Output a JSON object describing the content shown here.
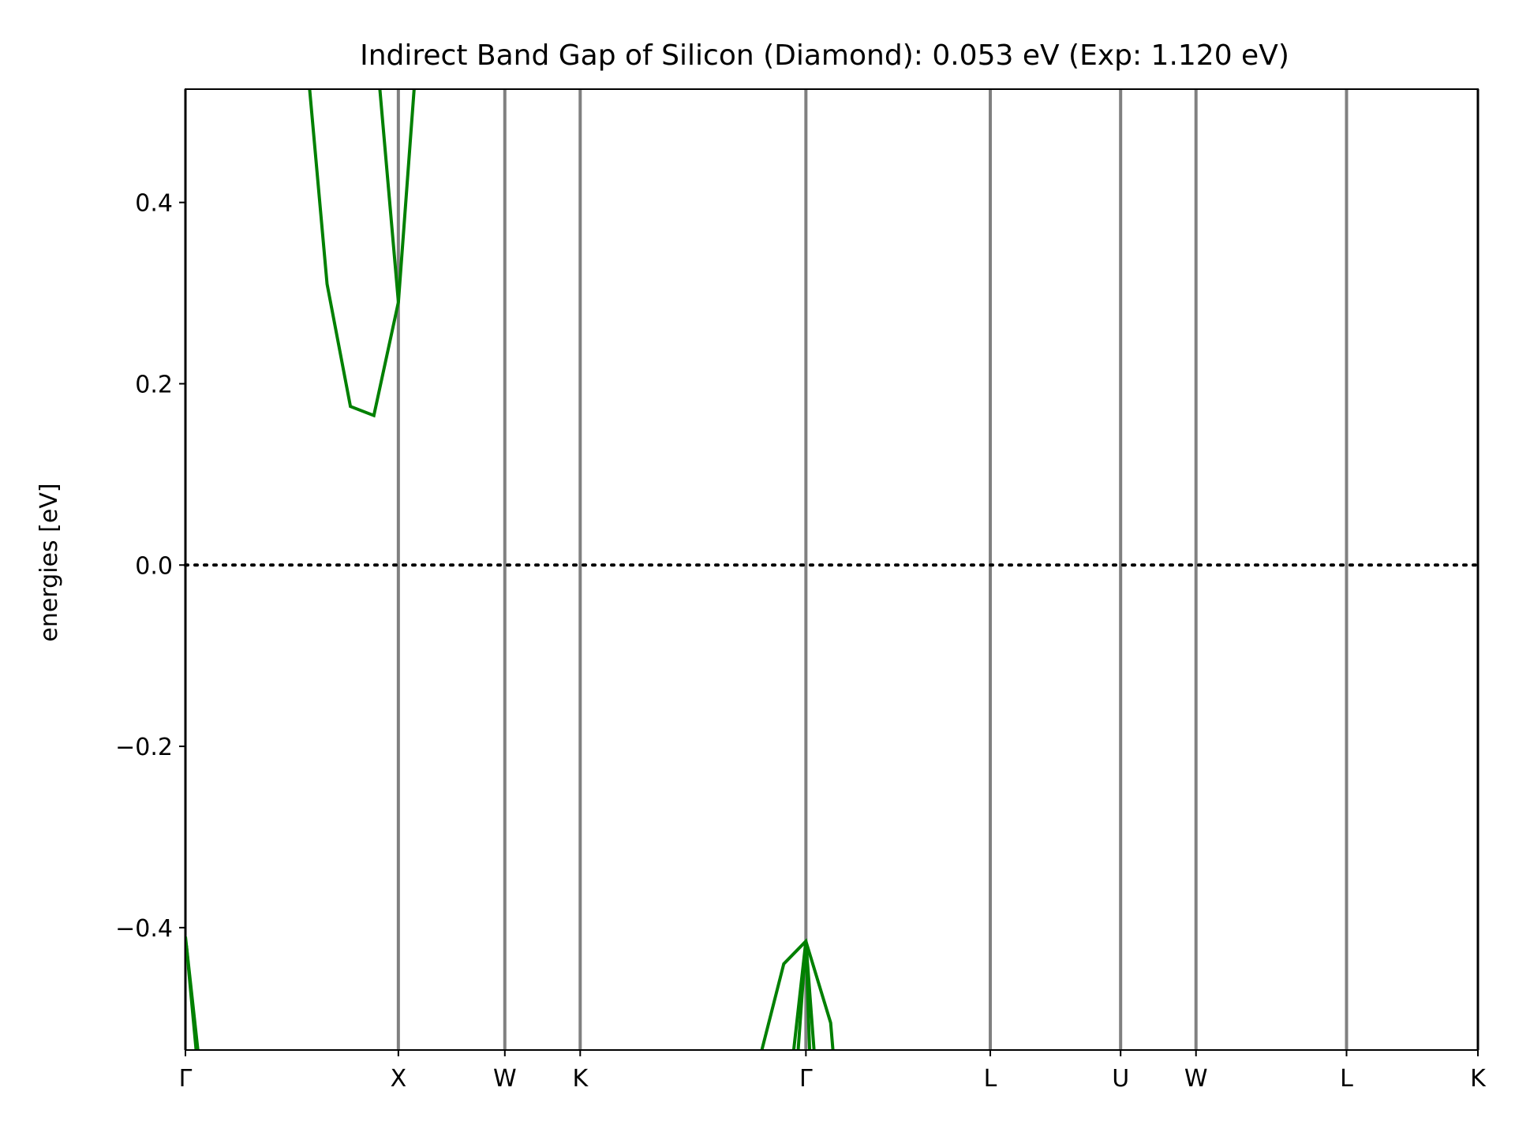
{
  "chart_data": {
    "type": "line",
    "title": "Indirect Band Gap of Silicon (Diamond): 0.053 eV (Exp: 1.120 eV)",
    "xlabel": "",
    "ylabel": "energies [eV]",
    "xlim": [
      0,
      6.07
    ],
    "ylim": [
      -0.535,
      0.525
    ],
    "yticks": [
      0.4,
      0.2,
      0.0,
      -0.2,
      -0.4
    ],
    "ytick_labels": [
      "0.4",
      "0.2",
      "0.0",
      "−0.2",
      "−0.4"
    ],
    "kpoints": [
      {
        "label": "Γ",
        "x": 0.0
      },
      {
        "label": "X",
        "x": 1.0
      },
      {
        "label": "W",
        "x": 1.5
      },
      {
        "label": "K",
        "x": 1.854
      },
      {
        "label": "Γ",
        "x": 2.914
      },
      {
        "label": "L",
        "x": 3.78
      },
      {
        "label": "U",
        "x": 4.392
      },
      {
        "label": "W",
        "x": 4.746
      },
      {
        "label": "L",
        "x": 5.453
      },
      {
        "label": "K",
        "x": 6.07
      }
    ],
    "fermi_level": 0.0,
    "grid": false,
    "colors": {
      "band": "#008000",
      "kline": "#808080",
      "fermi": "#000000"
    },
    "series": [
      {
        "points": [
          [
            0.0,
            -0.41
          ],
          [
            0.07,
            -0.56
          ]
        ]
      },
      {
        "points": [
          [
            0.005,
            -0.42
          ],
          [
            0.06,
            -0.56
          ]
        ]
      },
      {
        "points": [
          [
            0.57,
            0.56
          ],
          [
            0.665,
            0.31
          ],
          [
            0.775,
            0.175
          ],
          [
            0.885,
            0.165
          ],
          [
            1.0,
            0.29
          ],
          [
            1.085,
            0.56
          ]
        ]
      },
      {
        "points": [
          [
            0.9,
            0.56
          ],
          [
            1.0,
            0.29
          ]
        ]
      },
      {
        "points": [
          [
            2.68,
            -0.56
          ],
          [
            2.81,
            -0.44
          ],
          [
            2.914,
            -0.415
          ],
          [
            3.03,
            -0.505
          ],
          [
            3.05,
            -0.56
          ]
        ]
      },
      {
        "points": [
          [
            2.845,
            -0.56
          ],
          [
            2.914,
            -0.415
          ],
          [
            2.96,
            -0.56
          ]
        ]
      },
      {
        "points": [
          [
            2.87,
            -0.56
          ],
          [
            2.914,
            -0.415
          ],
          [
            2.935,
            -0.56
          ]
        ]
      }
    ]
  }
}
